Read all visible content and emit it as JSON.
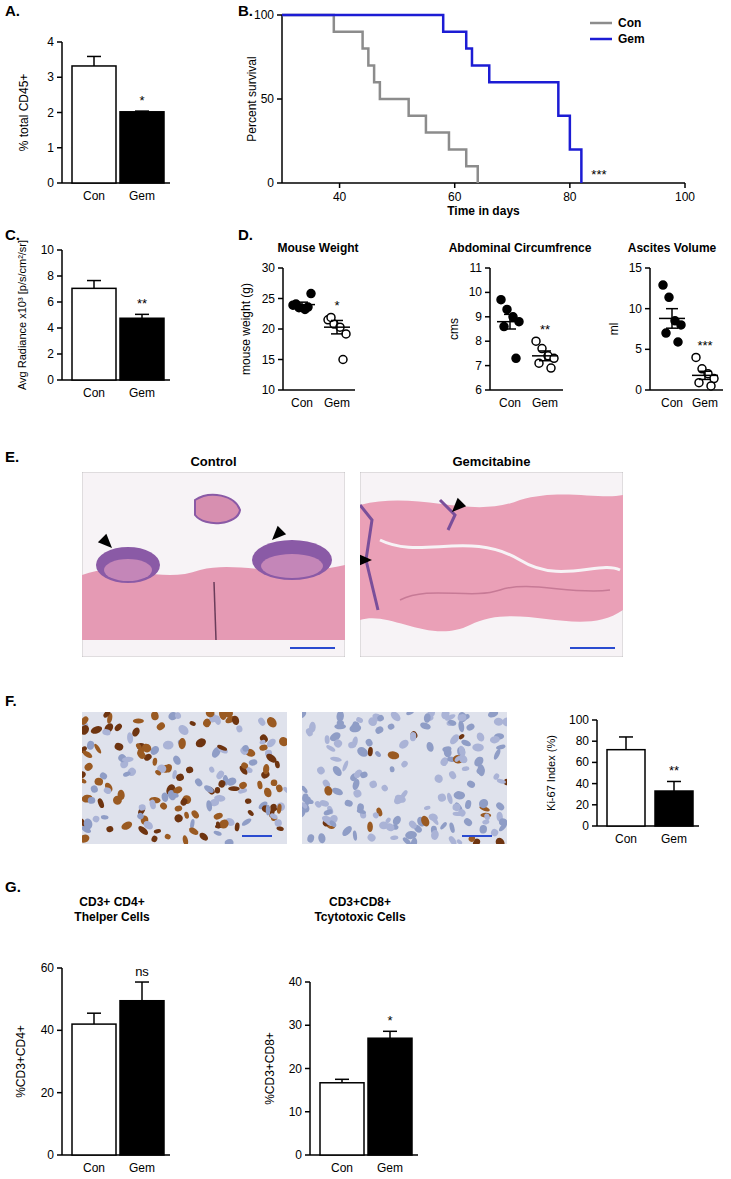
{
  "chart_data": [
    {
      "type": "bar",
      "panel": "A.",
      "y_label": "% total CD45+",
      "categories": [
        "Con",
        "Gem"
      ],
      "values": [
        3.32,
        2.02
      ],
      "errors": [
        0.27,
        0.02
      ],
      "colors": [
        "#ffffff",
        "#000000"
      ],
      "ylim": [
        0,
        4
      ],
      "yticks": [
        0,
        1,
        2,
        3,
        4
      ],
      "annotations": [
        "*"
      ]
    },
    {
      "type": "line",
      "panel": "B.",
      "x_label": "Time in days",
      "y_label": "Percent survival",
      "line_style": "steps",
      "legend": "upper right",
      "xlim": [
        30,
        100
      ],
      "xticks": [
        40,
        60,
        80,
        100
      ],
      "ylim": [
        0,
        100
      ],
      "yticks": [
        0,
        50,
        100
      ],
      "annotations": [
        "***"
      ],
      "series": [
        {
          "name": "Con",
          "color": "#8c8c8c",
          "x": [
            30,
            39,
            44,
            45,
            46,
            47,
            52,
            55,
            59,
            62,
            64
          ],
          "values": [
            100,
            90,
            80,
            70,
            60,
            50,
            40,
            30,
            20,
            10,
            0
          ]
        },
        {
          "name": "Gem",
          "color": "#1c1cd4",
          "x": [
            30,
            58,
            62,
            63,
            66,
            78,
            80,
            82
          ],
          "values": [
            100,
            90,
            80,
            70,
            60,
            40,
            20,
            0
          ]
        }
      ]
    },
    {
      "type": "bar",
      "panel": "C.",
      "y_label": "Avg Radiance x10³ [p/s/cm²/sr]",
      "categories": [
        "Con",
        "Gem"
      ],
      "values": [
        7.05,
        4.75
      ],
      "errors": [
        0.6,
        0.3
      ],
      "colors": [
        "#ffffff",
        "#000000"
      ],
      "ylim": [
        0,
        10
      ],
      "yticks": [
        0,
        2,
        4,
        6,
        8,
        10
      ],
      "annotations": [
        "**"
      ]
    },
    {
      "type": "scatter",
      "panel": "D.",
      "title": "Mouse Weight",
      "y_label": "mouse weight (g)",
      "categories": [
        "Con",
        "Gem"
      ],
      "points": [
        [
          23.9,
          23.5,
          23.2,
          25.8,
          24.1,
          23.6
        ],
        [
          21.5,
          20.8,
          20.3,
          19.2,
          21.9,
          15.0
        ]
      ],
      "values": [
        24.0,
        20.3
      ],
      "errors": [
        0.4,
        1.1
      ],
      "ylim": [
        10,
        30
      ],
      "yticks": [
        10,
        15,
        20,
        25,
        30
      ],
      "annotations": [
        "*"
      ]
    },
    {
      "type": "scatter",
      "title": "Abdominal Circumfrence",
      "y_label": "cms",
      "categories": [
        "Con",
        "Gem"
      ],
      "points": [
        [
          9.7,
          9.3,
          9.0,
          8.8,
          8.6,
          7.3
        ],
        [
          8.0,
          7.7,
          7.4,
          7.3,
          7.1,
          6.9
        ]
      ],
      "values": [
        8.8,
        7.4
      ],
      "errors": [
        0.3,
        0.2
      ],
      "ylim": [
        6,
        11
      ],
      "yticks": [
        6,
        7,
        8,
        9,
        10,
        11
      ],
      "annotations": [
        "**"
      ]
    },
    {
      "type": "scatter",
      "title": "Ascites Volume",
      "y_label": "ml",
      "categories": [
        "Con",
        "Gem"
      ],
      "points": [
        [
          12.9,
          11.4,
          8.5,
          8.0,
          7.0,
          5.9
        ],
        [
          4.0,
          2.6,
          2.0,
          1.4,
          0.9,
          0.5
        ]
      ],
      "values": [
        8.8,
        1.8
      ],
      "errors": [
        1.2,
        0.5
      ],
      "ylim": [
        0,
        15
      ],
      "yticks": [
        0,
        5,
        10,
        15
      ],
      "annotations": [
        "***"
      ]
    },
    {
      "type": "bar",
      "panel": "F.",
      "y_label": "Ki-67 Index (%)",
      "categories": [
        "Con",
        "Gem"
      ],
      "values": [
        72,
        33
      ],
      "errors": [
        12,
        9
      ],
      "colors": [
        "#ffffff",
        "#000000"
      ],
      "ylim": [
        0,
        100
      ],
      "yticks": [
        0,
        20,
        40,
        60,
        80,
        100
      ],
      "annotations": [
        "**"
      ]
    },
    {
      "type": "bar",
      "panel": "G.",
      "title": "CD3+ CD4+",
      "subtitle": "Thelper Cells",
      "y_label": "%CD3+CD4+",
      "categories": [
        "Con",
        "Gem"
      ],
      "values": [
        42,
        49.5
      ],
      "errors": [
        3.5,
        6
      ],
      "colors": [
        "#ffffff",
        "#000000"
      ],
      "ylim": [
        0,
        60
      ],
      "yticks": [
        0,
        20,
        40,
        60
      ],
      "annotations": [
        "ns"
      ]
    },
    {
      "type": "bar",
      "title": "CD3+CD8+",
      "subtitle": "Tcytotoxic Cells",
      "y_label": "%CD3+CD8+",
      "categories": [
        "Con",
        "Gem"
      ],
      "values": [
        16.7,
        27
      ],
      "errors": [
        0.8,
        1.6
      ],
      "colors": [
        "#ffffff",
        "#000000"
      ],
      "ylim": [
        0,
        40
      ],
      "yticks": [
        0,
        10,
        20,
        30,
        40
      ],
      "annotations": [
        "*"
      ]
    }
  ],
  "images": {
    "panel": "E.",
    "titles": [
      "Control",
      "Gemcitabine"
    ]
  }
}
